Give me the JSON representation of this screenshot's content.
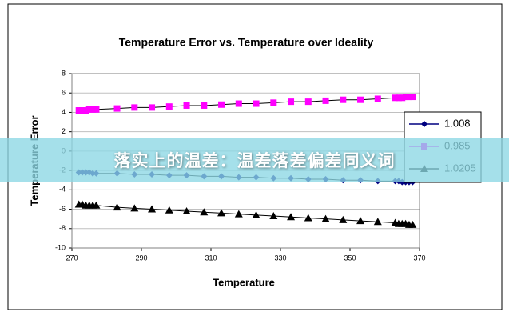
{
  "chart_data": {
    "type": "scatter",
    "title": "Temperature Error vs. Temperature over Ideality",
    "x_label": "Temperature",
    "y_label": "Temperature Error",
    "x": [
      272,
      273,
      274,
      275,
      276,
      277,
      283,
      288,
      293,
      298,
      303,
      308,
      313,
      318,
      323,
      328,
      333,
      338,
      343,
      348,
      353,
      358,
      363,
      364,
      365,
      366,
      367,
      368
    ],
    "series": [
      {
        "name": "1.008",
        "color": "#000080",
        "marker": "diamond",
        "values": [
          -2.2,
          -2.2,
          -2.2,
          -2.2,
          -2.3,
          -2.3,
          -2.3,
          -2.4,
          -2.4,
          -2.5,
          -2.5,
          -2.6,
          -2.6,
          -2.7,
          -2.7,
          -2.8,
          -2.8,
          -2.9,
          -2.9,
          -3.0,
          -3.0,
          -3.1,
          -3.1,
          -3.1,
          -3.2,
          -3.2,
          -3.2,
          -3.2
        ]
      },
      {
        "name": "0.985",
        "color": "#ff00ff",
        "marker": "square",
        "values": [
          4.2,
          4.2,
          4.2,
          4.3,
          4.3,
          4.3,
          4.4,
          4.5,
          4.5,
          4.6,
          4.7,
          4.7,
          4.8,
          4.9,
          4.9,
          5.0,
          5.1,
          5.1,
          5.2,
          5.3,
          5.3,
          5.4,
          5.5,
          5.5,
          5.5,
          5.6,
          5.6,
          5.6
        ]
      },
      {
        "name": "1.0205",
        "color": "#000000",
        "marker": "triangle",
        "values": [
          -5.5,
          -5.5,
          -5.6,
          -5.6,
          -5.6,
          -5.6,
          -5.8,
          -5.9,
          -6.0,
          -6.1,
          -6.2,
          -6.3,
          -6.4,
          -6.5,
          -6.6,
          -6.7,
          -6.8,
          -6.9,
          -7.0,
          -7.1,
          -7.2,
          -7.3,
          -7.4,
          -7.5,
          -7.5,
          -7.5,
          -7.6,
          -7.6
        ]
      }
    ],
    "xlim": [
      270,
      370
    ],
    "xticks": [
      270,
      290,
      310,
      330,
      350,
      370
    ],
    "ylim": [
      -10,
      8
    ],
    "yticks": [
      -10,
      -8,
      -6,
      -4,
      -2,
      0,
      2,
      4,
      6,
      8
    ],
    "grid": true,
    "legend": "right"
  },
  "banner": {
    "text": "落实上的温差：温差落差偏差同义词"
  }
}
